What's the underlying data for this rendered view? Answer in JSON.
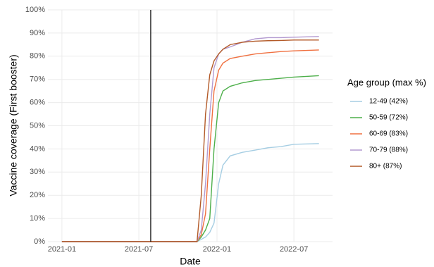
{
  "chart_data": {
    "type": "line",
    "x_label": "Date",
    "y_label": "Vaccine coverage (First booster)",
    "legend_title": "Age group (max %)",
    "x": [
      "2021-01-01",
      "2021-11-15",
      "2021-11-25",
      "2021-12-05",
      "2021-12-15",
      "2021-12-25",
      "2022-01-05",
      "2022-01-15",
      "2022-02-01",
      "2022-03-01",
      "2022-04-01",
      "2022-05-01",
      "2022-06-01",
      "2022-07-01",
      "2022-08-29"
    ],
    "series": [
      {
        "name": "12-49 (42%)",
        "color": "#a6cee3",
        "values": [
          0,
          0,
          1,
          2,
          4,
          8,
          25,
          33,
          37,
          38.5,
          39.5,
          40.5,
          41,
          42,
          42.3
        ]
      },
      {
        "name": "50-59 (72%)",
        "color": "#4daf4a",
        "values": [
          0,
          0,
          2,
          5,
          10,
          40,
          60,
          65,
          67,
          68.5,
          69.5,
          70,
          70.5,
          71,
          71.6
        ]
      },
      {
        "name": "60-69 (83%)",
        "color": "#f07040",
        "values": [
          0,
          0,
          3,
          12,
          40,
          65,
          74,
          77,
          79,
          80,
          81,
          81.5,
          82,
          82.3,
          82.7
        ]
      },
      {
        "name": "70-79 (88%)",
        "color": "#b39ad0",
        "values": [
          0,
          0,
          5,
          25,
          55,
          75,
          81,
          83,
          84,
          86,
          87.5,
          88,
          88,
          88.2,
          88.5
        ]
      },
      {
        "name": "80+ (87%)",
        "color": "#b35a28",
        "values": [
          0,
          0,
          20,
          55,
          72,
          78,
          81,
          83,
          85,
          86,
          86.5,
          86.7,
          86.8,
          87,
          87
        ]
      }
    ],
    "vline": "2021-07-29",
    "xlim": [
      "2020-11-29",
      "2022-09-30"
    ],
    "xticks": [
      "2021-01",
      "2021-07",
      "2022-01",
      "2022-07"
    ],
    "ylim": [
      0,
      100
    ],
    "yticks": [
      {
        "value": 0,
        "label": "0%"
      },
      {
        "value": 10,
        "label": "10%"
      },
      {
        "value": 20,
        "label": "20%"
      },
      {
        "value": 30,
        "label": "30%"
      },
      {
        "value": 40,
        "label": "40%"
      },
      {
        "value": 50,
        "label": "50%"
      },
      {
        "value": 60,
        "label": "60%"
      },
      {
        "value": 70,
        "label": "70%"
      },
      {
        "value": 80,
        "label": "80%"
      },
      {
        "value": 90,
        "label": "90%"
      },
      {
        "value": 100,
        "label": "100%"
      }
    ],
    "grid": true
  }
}
